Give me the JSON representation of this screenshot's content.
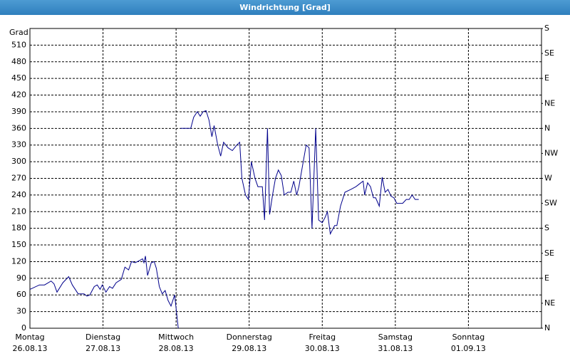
{
  "chart_data": {
    "type": "line",
    "title": "Windrichtung [Grad]",
    "ylabel": "Grad",
    "color": "#00008b",
    "grid": true,
    "xlim": [
      0,
      7
    ],
    "xticks": [
      {
        "value": 0,
        "label": "Montag"
      },
      {
        "value": 1,
        "label": "Dienstag"
      },
      {
        "value": 2,
        "label": "Mittwoch"
      },
      {
        "value": 3,
        "label": "Donnerstag"
      },
      {
        "value": 4,
        "label": "Freitag"
      },
      {
        "value": 5,
        "label": "Samstag"
      },
      {
        "value": 6,
        "label": "Sonntag"
      }
    ],
    "xtick_dates": [
      "26.08.13",
      "27.08.13",
      "28.08.13",
      "29.08.13",
      "30.08.13",
      "31.08.13",
      "01.09.13"
    ],
    "ylim": [
      0,
      540
    ],
    "yticks": [
      0,
      30,
      60,
      90,
      120,
      150,
      180,
      210,
      240,
      270,
      300,
      330,
      360,
      390,
      420,
      450,
      480,
      510
    ],
    "y2lim": [
      0,
      540
    ],
    "y2ticks": [
      {
        "value": 0,
        "label": "N"
      },
      {
        "value": 45,
        "label": "NE"
      },
      {
        "value": 90,
        "label": "E"
      },
      {
        "value": 135,
        "label": "SE"
      },
      {
        "value": 180,
        "label": "S"
      },
      {
        "value": 225,
        "label": "SW"
      },
      {
        "value": 270,
        "label": "W"
      },
      {
        "value": 315,
        "label": "NW"
      },
      {
        "value": 360,
        "label": "N"
      },
      {
        "value": 405,
        "label": "NE"
      },
      {
        "value": 450,
        "label": "E"
      },
      {
        "value": 495,
        "label": "SE"
      },
      {
        "value": 540,
        "label": "S"
      }
    ],
    "x": [
      0,
      0.13,
      0.2,
      0.29,
      0.33,
      0.37,
      0.45,
      0.53,
      0.58,
      0.66,
      0.74,
      0.78,
      0.82,
      0.88,
      0.92,
      0.96,
      0.99,
      1.04,
      1.09,
      1.13,
      1.18,
      1.25,
      1.3,
      1.35,
      1.39,
      1.44,
      1.5,
      1.54,
      1.56,
      1.58,
      1.61,
      1.66,
      1.7,
      1.73,
      1.77,
      1.81,
      1.85,
      1.89,
      1.93,
      1.98,
      2.03,
      2.04,
      2.06,
      2.2,
      2.24,
      2.29,
      2.33,
      2.37,
      2.41,
      2.45,
      2.49,
      2.52,
      2.57,
      2.61,
      2.65,
      2.71,
      2.77,
      2.83,
      2.87,
      2.9,
      2.95,
      2.99,
      3.03,
      3.08,
      3.12,
      3.18,
      3.21,
      3.25,
      3.28,
      3.32,
      3.36,
      3.4,
      3.44,
      3.48,
      3.53,
      3.57,
      3.61,
      3.65,
      3.68,
      3.74,
      3.78,
      3.82,
      3.86,
      3.91,
      3.95,
      4.0,
      4.04,
      4.07,
      4.11,
      4.17,
      4.2,
      4.25,
      4.31,
      4.39,
      4.46,
      4.53,
      4.56,
      4.58,
      4.62,
      4.66,
      4.7,
      4.73,
      4.78,
      4.82,
      4.86,
      4.9,
      4.94,
      4.98,
      5.02,
      5.1,
      5.15,
      5.19,
      5.23,
      5.27,
      5.32
    ],
    "values": [
      70,
      78,
      78,
      85,
      80,
      65,
      82,
      93,
      78,
      62,
      62,
      58,
      60,
      75,
      78,
      70,
      78,
      65,
      75,
      72,
      82,
      88,
      110,
      105,
      120,
      118,
      122,
      125,
      118,
      130,
      95,
      118,
      120,
      108,
      75,
      62,
      68,
      50,
      40,
      60,
      0,
      null,
      360,
      360,
      380,
      390,
      382,
      390,
      392,
      375,
      345,
      365,
      330,
      310,
      335,
      325,
      320,
      330,
      335,
      270,
      240,
      232,
      300,
      270,
      255,
      255,
      195,
      360,
      205,
      240,
      270,
      285,
      275,
      240,
      245,
      245,
      265,
      240,
      255,
      300,
      330,
      325,
      180,
      360,
      195,
      190,
      200,
      210,
      170,
      185,
      185,
      220,
      245,
      250,
      255,
      262,
      265,
      240,
      262,
      255,
      235,
      235,
      220,
      272,
      245,
      250,
      238,
      235,
      225,
      225,
      232,
      232,
      240,
      232,
      232
    ]
  }
}
